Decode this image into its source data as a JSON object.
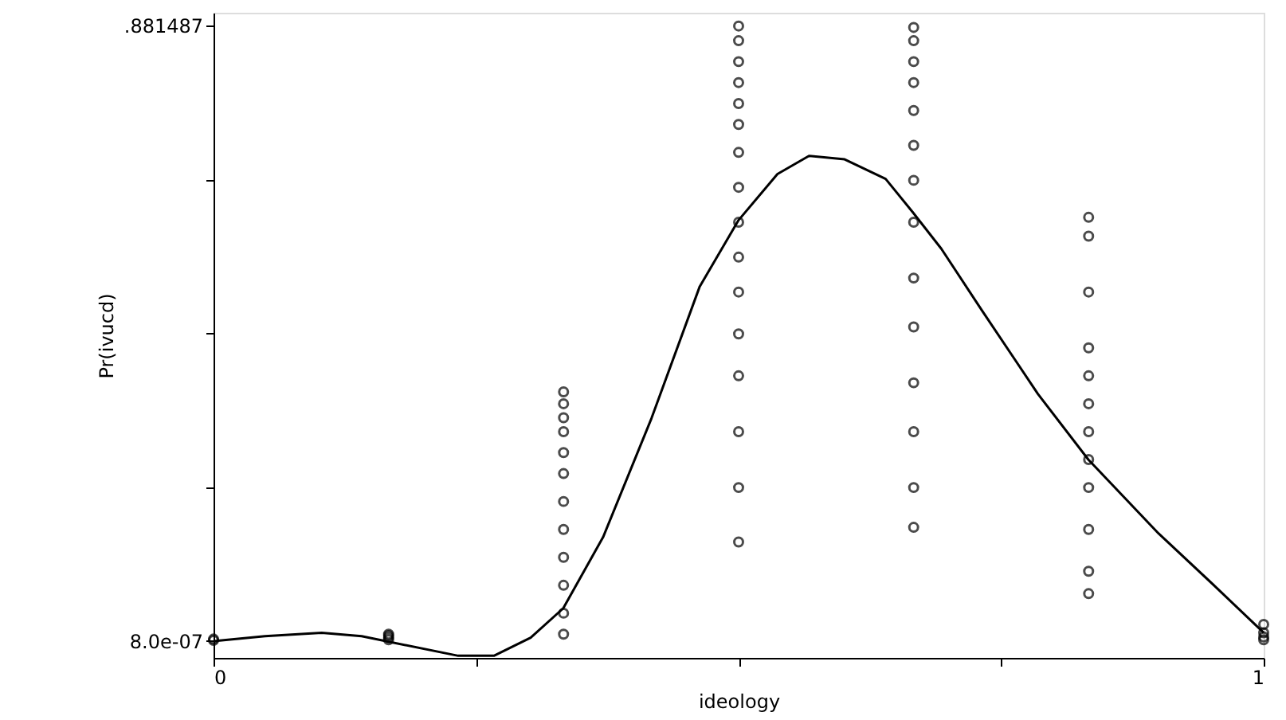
{
  "chart_data": {
    "type": "scatter",
    "xlabel": "ideology",
    "ylabel": "Pr(ivucd)",
    "xlim": [
      0,
      1
    ],
    "ylim": [
      -0.024,
      0.9
    ],
    "xticks": [
      0,
      {
        "value": 0.25,
        "label": null
      },
      {
        "value": 0.5,
        "label": null
      },
      {
        "value": 0.75,
        "label": null
      },
      1
    ],
    "yticks": [
      {
        "value": 8e-07,
        "label": "8.0e-07"
      },
      {
        "value": 0.2204,
        "label": null
      },
      {
        "value": 0.4407,
        "label": null
      },
      {
        "value": 0.6611,
        "label": null
      },
      {
        "value": 0.881487,
        "label": ".881487"
      }
    ],
    "grid": false,
    "series": [
      {
        "marker": "circle",
        "color": "#000000",
        "x": [
          0,
          0,
          0.1667,
          0.1667,
          0.1667,
          0.1667,
          0.3333,
          0.3333,
          0.3333,
          0.3333,
          0.3333,
          0.3333,
          0.3333,
          0.3333,
          0.3333,
          0.3333,
          0.3333,
          0.3333,
          0.5,
          0.5,
          0.5,
          0.5,
          0.5,
          0.5,
          0.5,
          0.5,
          0.5,
          0.5,
          0.5,
          0.5,
          0.5,
          0.5,
          0.5,
          0.5,
          0.6667,
          0.6667,
          0.6667,
          0.6667,
          0.6667,
          0.6667,
          0.6667,
          0.6667,
          0.6667,
          0.6667,
          0.6667,
          0.6667,
          0.6667,
          0.6667,
          0.8333,
          0.8333,
          0.8333,
          0.8333,
          0.8333,
          0.8333,
          0.8333,
          0.8333,
          0.8333,
          0.8333,
          0.8333,
          0.8333,
          1,
          1,
          1,
          1
        ],
        "values": [
          0.001,
          0.003,
          0.002,
          0.005,
          0.008,
          0.01,
          0.357,
          0.34,
          0.32,
          0.3,
          0.27,
          0.24,
          0.2,
          0.16,
          0.12,
          0.08,
          0.04,
          0.01,
          0.881,
          0.86,
          0.83,
          0.8,
          0.77,
          0.74,
          0.7,
          0.65,
          0.6,
          0.55,
          0.5,
          0.44,
          0.38,
          0.3,
          0.22,
          0.142,
          0.879,
          0.86,
          0.83,
          0.8,
          0.76,
          0.71,
          0.66,
          0.6,
          0.52,
          0.45,
          0.37,
          0.3,
          0.22,
          0.163,
          0.607,
          0.58,
          0.5,
          0.42,
          0.38,
          0.34,
          0.3,
          0.26,
          0.22,
          0.16,
          0.1,
          0.068,
          0.002,
          0.006,
          0.012,
          0.024
        ]
      },
      {
        "type": "line",
        "color": "#000000",
        "x": [
          0,
          0.049,
          0.103,
          0.141,
          0.233,
          0.267,
          0.302,
          0.333,
          0.371,
          0.417,
          0.463,
          0.5,
          0.537,
          0.567,
          0.601,
          0.64,
          0.666,
          0.693,
          0.732,
          0.785,
          0.833,
          0.9,
          0.954,
          1
        ],
        "values": [
          0.0,
          0.007,
          0.012,
          0.007,
          -0.021,
          -0.021,
          0.005,
          0.047,
          0.149,
          0.319,
          0.508,
          0.603,
          0.669,
          0.695,
          0.69,
          0.662,
          0.614,
          0.562,
          0.473,
          0.354,
          0.26,
          0.154,
          0.078,
          0.012
        ]
      }
    ]
  }
}
